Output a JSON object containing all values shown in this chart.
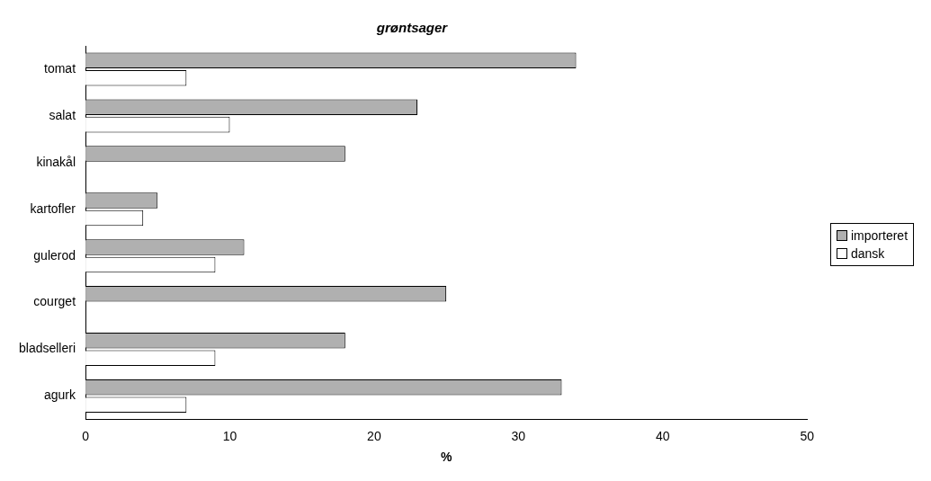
{
  "chart_data": {
    "type": "bar",
    "orientation": "horizontal",
    "title": "grøntsager",
    "xlabel": "%",
    "categories": [
      "tomat",
      "salat",
      "kinakål",
      "kartofler",
      "gulerod",
      "courget",
      "bladselleri",
      "agurk"
    ],
    "series": [
      {
        "name": "importeret",
        "color": "#b0b0b0",
        "values": [
          34,
          23,
          18,
          5,
          11,
          25,
          18,
          33
        ]
      },
      {
        "name": "dansk",
        "color": "#ffffff",
        "values": [
          7,
          10,
          0,
          4,
          9,
          0,
          9,
          7
        ]
      }
    ],
    "xlim": [
      0,
      50
    ],
    "xticks": [
      0,
      10,
      20,
      30,
      40,
      50
    ],
    "grid": false,
    "legend": "right"
  }
}
